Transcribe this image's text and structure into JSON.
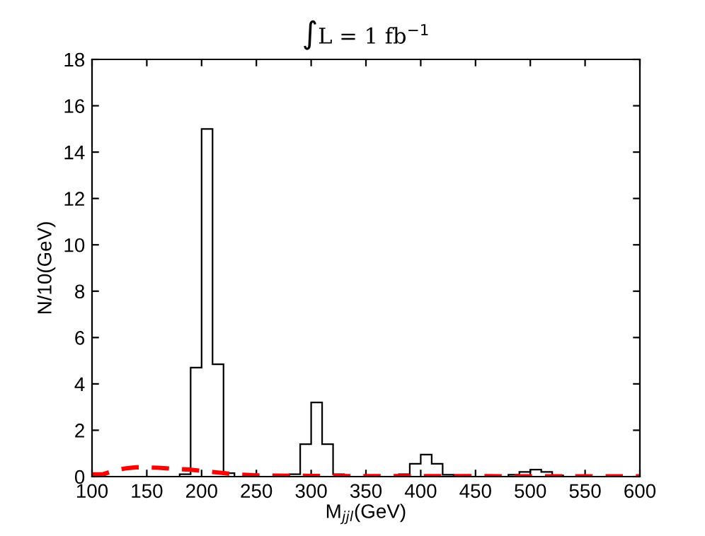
{
  "chart_data": {
    "type": "histogram",
    "title": "∫L = 1 fb$^{−1}$",
    "xlabel": "M$_{jjl}$(GeV)",
    "ylabel": "N/10(GeV)",
    "bins": [
      100,
      110,
      120,
      130,
      140,
      150,
      160,
      170,
      180,
      190,
      200,
      210,
      220,
      230,
      240,
      250,
      260,
      270,
      280,
      290,
      300,
      310,
      320,
      330,
      340,
      350,
      360,
      370,
      380,
      390,
      400,
      410,
      420,
      430,
      440,
      450,
      460,
      470,
      480,
      490,
      500,
      510,
      520,
      530,
      540,
      550,
      560,
      570,
      580,
      590,
      600
    ],
    "series": [
      {
        "color": "#000000",
        "values": [
          0,
          0,
          0,
          0,
          0,
          0,
          0,
          0,
          0.1,
          4.7,
          15,
          4.85,
          0.15,
          0,
          0,
          0,
          0,
          0,
          0.1,
          1.4,
          3.2,
          1.4,
          0.1,
          0,
          0,
          0,
          0,
          0,
          0.1,
          0.55,
          0.95,
          0.55,
          0.08,
          0,
          0,
          0,
          0,
          0,
          0.08,
          0.2,
          0.3,
          0.2,
          0.05,
          0,
          0,
          0,
          0,
          0,
          0,
          0
        ]
      },
      {
        "type": "line",
        "color": "#ff0000",
        "line_style": "dashed",
        "x": [
          100,
          110,
          120,
          130,
          140,
          150,
          160,
          170,
          180,
          190,
          200,
          210,
          220,
          230,
          250,
          300,
          350,
          400,
          450,
          500,
          550,
          600
        ],
        "values": [
          0.1,
          0.1,
          0.25,
          0.35,
          0.4,
          0.4,
          0.38,
          0.35,
          0.32,
          0.3,
          0.25,
          0.2,
          0.15,
          0.1,
          0.05,
          0.03,
          0.02,
          0.02,
          0.02,
          0.01,
          0.01,
          0.01
        ]
      }
    ],
    "xlim": [
      100,
      600
    ],
    "xticks": [
      100,
      150,
      200,
      250,
      300,
      350,
      400,
      450,
      500,
      550,
      600
    ],
    "ylim": [
      0,
      18
    ],
    "yticks": [
      0,
      2,
      4,
      6,
      8,
      10,
      12,
      14,
      16,
      18
    ],
    "grid": false,
    "legend": false
  }
}
